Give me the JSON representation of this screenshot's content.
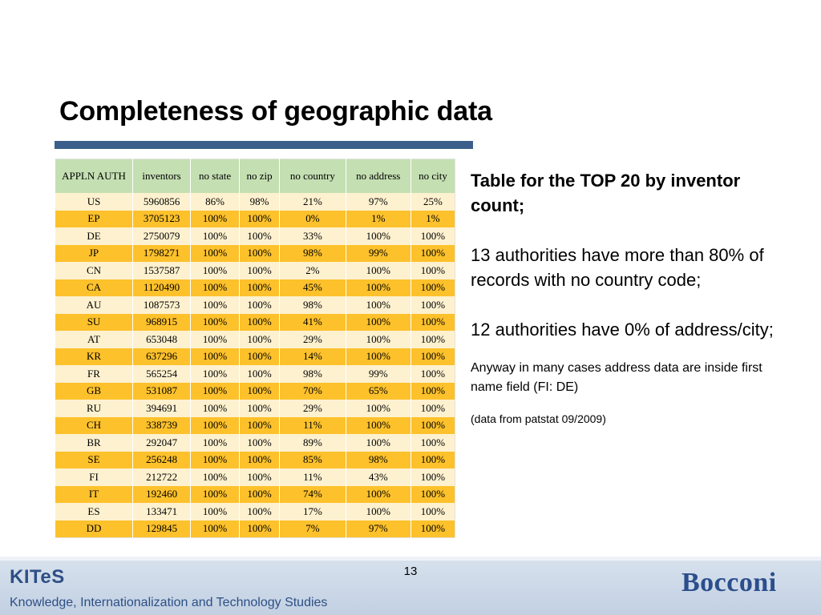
{
  "slide": {
    "title": "Completeness of geographic data",
    "page_number": "13"
  },
  "table": {
    "headers": [
      "APPLN AUTH",
      "inventors",
      "no state",
      "no zip",
      "no country",
      "no address",
      "no city"
    ],
    "rows": [
      [
        "US",
        "5960856",
        "86%",
        "98%",
        "21%",
        "97%",
        "25%"
      ],
      [
        "EP",
        "3705123",
        "100%",
        "100%",
        "0%",
        "1%",
        "1%"
      ],
      [
        "DE",
        "2750079",
        "100%",
        "100%",
        "33%",
        "100%",
        "100%"
      ],
      [
        "JP",
        "1798271",
        "100%",
        "100%",
        "98%",
        "99%",
        "100%"
      ],
      [
        "CN",
        "1537587",
        "100%",
        "100%",
        "2%",
        "100%",
        "100%"
      ],
      [
        "CA",
        "1120490",
        "100%",
        "100%",
        "45%",
        "100%",
        "100%"
      ],
      [
        "AU",
        "1087573",
        "100%",
        "100%",
        "98%",
        "100%",
        "100%"
      ],
      [
        "SU",
        "968915",
        "100%",
        "100%",
        "41%",
        "100%",
        "100%"
      ],
      [
        "AT",
        "653048",
        "100%",
        "100%",
        "29%",
        "100%",
        "100%"
      ],
      [
        "KR",
        "637296",
        "100%",
        "100%",
        "14%",
        "100%",
        "100%"
      ],
      [
        "FR",
        "565254",
        "100%",
        "100%",
        "98%",
        "99%",
        "100%"
      ],
      [
        "GB",
        "531087",
        "100%",
        "100%",
        "70%",
        "65%",
        "100%"
      ],
      [
        "RU",
        "394691",
        "100%",
        "100%",
        "29%",
        "100%",
        "100%"
      ],
      [
        "CH",
        "338739",
        "100%",
        "100%",
        "11%",
        "100%",
        "100%"
      ],
      [
        "BR",
        "292047",
        "100%",
        "100%",
        "89%",
        "100%",
        "100%"
      ],
      [
        "SE",
        "256248",
        "100%",
        "100%",
        "85%",
        "98%",
        "100%"
      ],
      [
        "FI",
        "212722",
        "100%",
        "100%",
        "11%",
        "43%",
        "100%"
      ],
      [
        "IT",
        "192460",
        "100%",
        "100%",
        "74%",
        "100%",
        "100%"
      ],
      [
        "ES",
        "133471",
        "100%",
        "100%",
        "17%",
        "100%",
        "100%"
      ],
      [
        "DD",
        "129845",
        "100%",
        "100%",
        "7%",
        "97%",
        "100%"
      ]
    ]
  },
  "side_text": {
    "heading": "Table for the TOP 20 by inventor count;",
    "point1": "13 authorities have more than 80% of records with no country code;",
    "point2": "12 authorities have 0% of address/city;",
    "note": "Anyway in many cases address data are inside first name field (FI: DE)",
    "source": "(data from patstat 09/2009)"
  },
  "footer": {
    "kites_logo": "KITeS",
    "kites_subtitle": "Knowledge, Internationalization and Technology Studies",
    "bocconi_logo": "Bocconi"
  },
  "colors": {
    "title_rule": "#3b5f8a",
    "header_fill": "#c4dfb2",
    "row_light": "#fef1cf",
    "row_dark": "#fdc12b",
    "logo_blue": "#2d4f85"
  }
}
